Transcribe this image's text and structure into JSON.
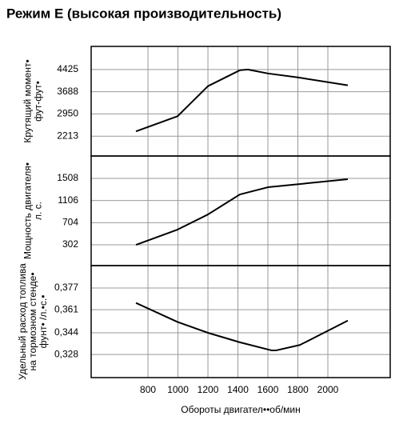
{
  "chart_data": [
    {
      "type": "line",
      "title": "Режим E (высокая производительность)",
      "ylabel": [
        "Крутящий момент•",
        "фут-фут•"
      ],
      "series": [
        {
          "color": "#000000",
          "x": [
            720,
            997,
            1200,
            1413,
            1466,
            1600,
            1800,
            2133
          ],
          "values": [
            2372,
            2872,
            3872,
            4399,
            4425,
            4293,
            4162,
            3899
          ]
        }
      ],
      "ylim": [
        1555,
        5190
      ],
      "yticks": [
        2213,
        2950,
        3688,
        4425
      ],
      "grid": true
    },
    {
      "type": "line",
      "ylabel": [
        "Мощность двигателя•",
        "л. с."
      ],
      "series": [
        {
          "color": "#000000",
          "x": [
            720,
            997,
            1200,
            1413,
            1600,
            2133
          ],
          "values": [
            302,
            578,
            853,
            1216,
            1347,
            1493
          ]
        }
      ],
      "ylim": [
        -75,
        1914
      ],
      "yticks": [
        302,
        704,
        1106,
        1508
      ],
      "grid": true
    },
    {
      "type": "line",
      "ylabel": [
        "Удельный расход топлива",
        "на тормозном стенде•",
        "фунт• /л.•с.•"
      ],
      "xlabel": "Обороты двигател••об/мин",
      "series": [
        {
          "color": "#000000",
          "x": [
            720,
            997,
            1200,
            1413,
            1626,
            1653,
            1813,
            2133
          ],
          "values": [
            0.366,
            0.352,
            0.344,
            0.337,
            0.331,
            0.331,
            0.335,
            0.353
          ]
        }
      ],
      "ylim": [
        0.311,
        0.3935
      ],
      "yticks": [
        {
          "value": 0.328,
          "label": "0,328"
        },
        {
          "value": 0.344,
          "label": "0,344"
        },
        {
          "value": 0.361,
          "label": "0,361"
        },
        {
          "value": 0.377,
          "label": "0,377"
        }
      ],
      "xlim": [
        421,
        2416
      ],
      "xticks": [
        800,
        1000,
        1200,
        1400,
        1600,
        1800,
        2000
      ],
      "grid": true
    }
  ]
}
